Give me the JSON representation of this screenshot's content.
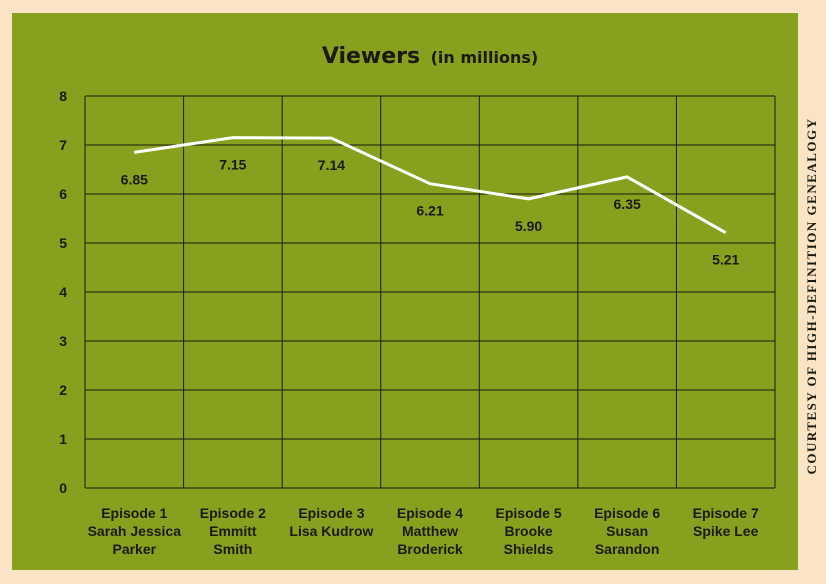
{
  "credit": "COURTESY OF HIGH-DEFINITION GENEALOGY",
  "colors": {
    "panel_bg": "#87a01e",
    "page_bg": "#fbe3c6",
    "line": "#ffffff",
    "grid": "#1a1a0d",
    "text": "#1a1a0d"
  },
  "chart_data": {
    "type": "line",
    "title": "Viewers",
    "subtitle": "(in millions)",
    "xlabel": "",
    "ylabel": "",
    "ylim": [
      0,
      8
    ],
    "yticks": [
      0,
      1,
      2,
      3,
      4,
      5,
      6,
      7,
      8
    ],
    "grid": true,
    "categories": [
      [
        "Episode 1",
        "Sarah Jessica",
        "Parker"
      ],
      [
        "Episode 2",
        "Emmitt",
        "Smith"
      ],
      [
        "Episode 3",
        "Lisa Kudrow"
      ],
      [
        "Episode 4",
        "Matthew",
        "Broderick"
      ],
      [
        "Episode 5",
        "Brooke",
        "Shields"
      ],
      [
        "Episode 6",
        "Susan",
        "Sarandon"
      ],
      [
        "Episode 7",
        "Spike Lee"
      ]
    ],
    "values": [
      6.85,
      7.15,
      7.14,
      6.21,
      5.9,
      6.35,
      5.21
    ],
    "data_labels": [
      "6.85",
      "7.15",
      "7.14",
      "6.21",
      "5.90",
      "6.35",
      "5.21"
    ]
  }
}
